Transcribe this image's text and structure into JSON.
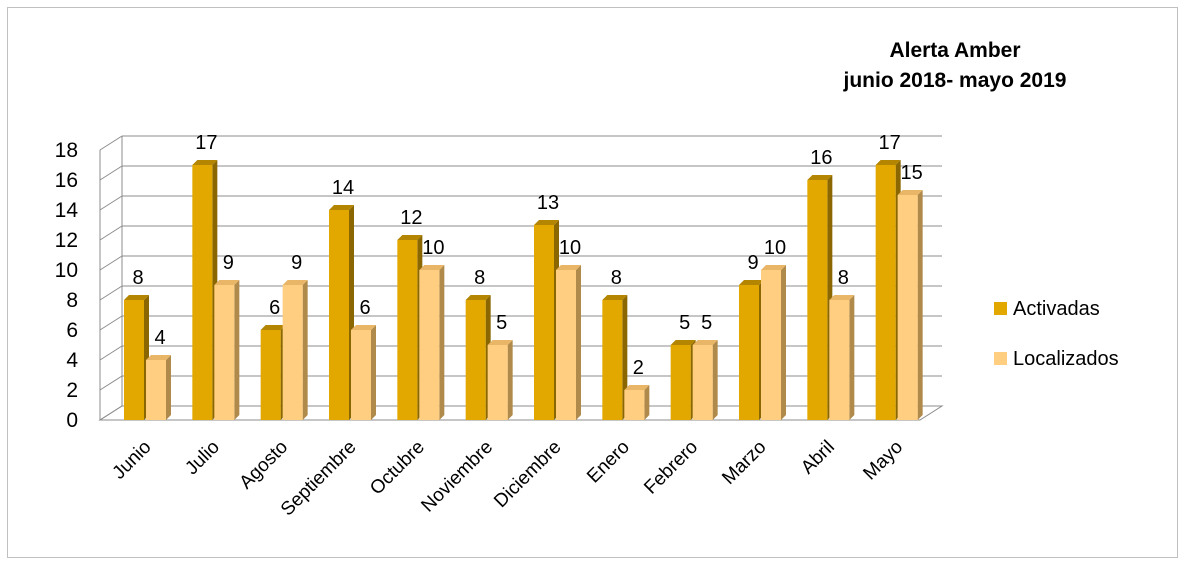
{
  "chart_data": {
    "type": "bar",
    "title": [
      "Alerta Amber",
      "junio 2018- mayo 2019"
    ],
    "categories": [
      "Junio",
      "Julio",
      "Agosto",
      "Septiembre",
      "Octubre",
      "Noviembre",
      "Diciembre",
      "Enero",
      "Febrero",
      "Marzo",
      "Abril",
      "Mayo"
    ],
    "series": [
      {
        "name": "Activadas",
        "values": [
          8,
          17,
          6,
          14,
          12,
          8,
          13,
          8,
          5,
          9,
          16,
          17
        ]
      },
      {
        "name": "Localizados",
        "values": [
          4,
          9,
          9,
          6,
          10,
          5,
          10,
          2,
          5,
          10,
          8,
          15
        ]
      }
    ],
    "yticks": [
      "0",
      "2",
      "4",
      "6",
      "8",
      "10",
      "12",
      "14",
      "16",
      "18"
    ],
    "ylim": [
      0,
      18
    ],
    "grid": true,
    "three_d": true,
    "legend_position": "right",
    "data_labels": true
  },
  "colors": {
    "activadas": {
      "front": "#E2A800",
      "side": "#8A6700",
      "top": "#B48500"
    },
    "localizados": {
      "front": "#FFCE80",
      "side": "#B08A4A",
      "top": "#E9B566"
    },
    "grid": "#8c8c8c",
    "frame": "#c0c0c0"
  }
}
